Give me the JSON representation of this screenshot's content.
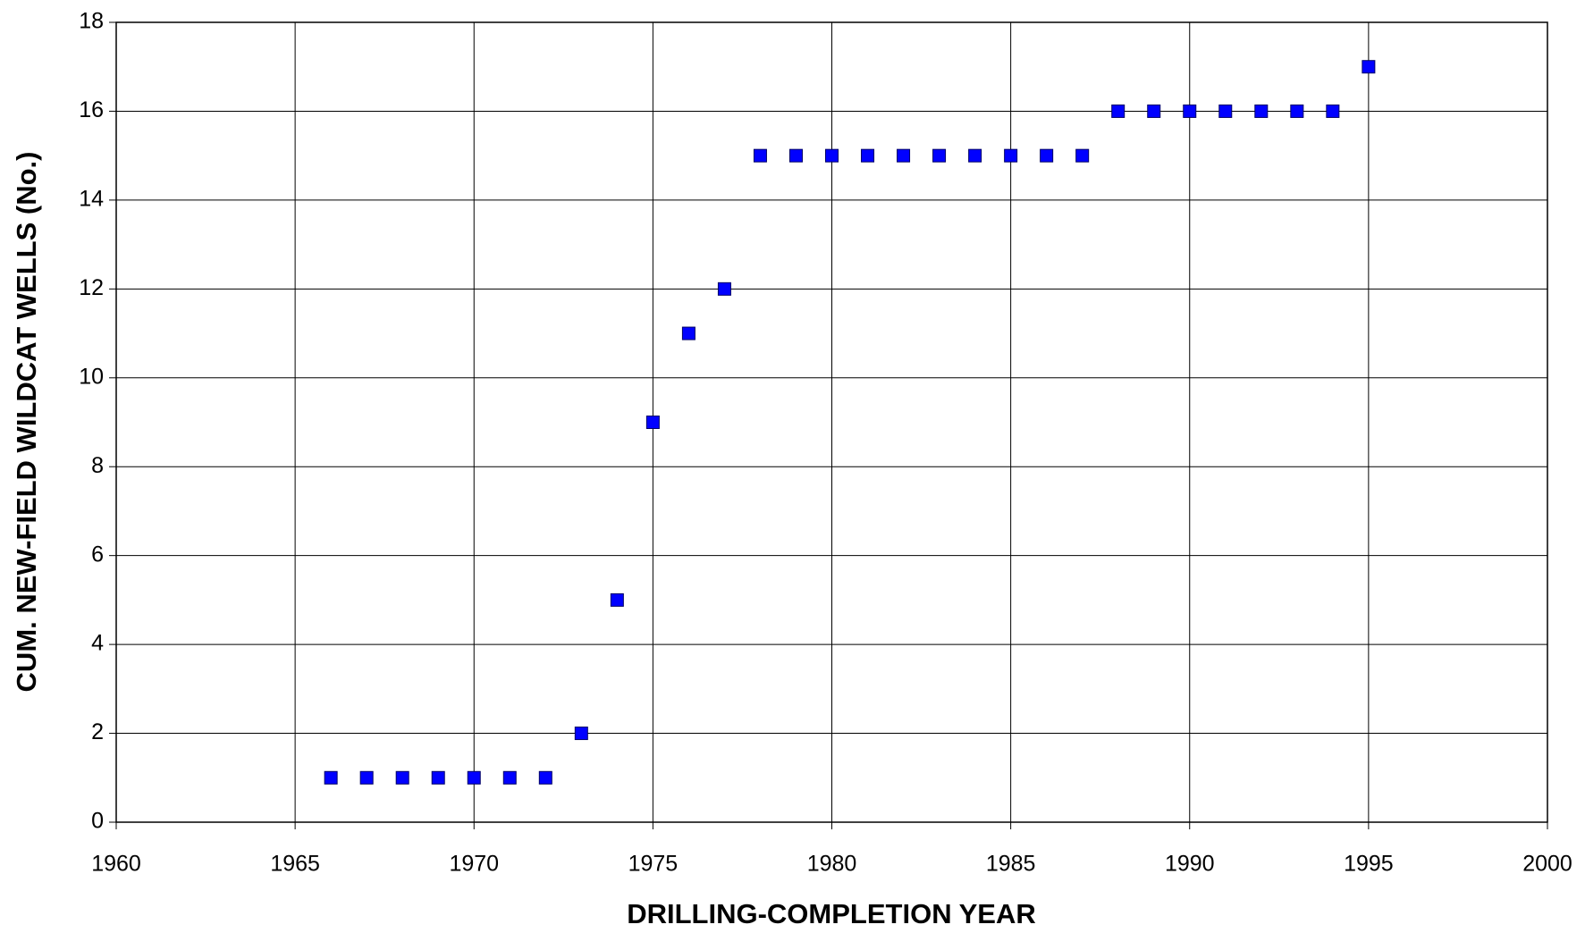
{
  "chart_data": {
    "type": "scatter",
    "x_label": "DRILLING-COMPLETION YEAR",
    "y_label": "CUM. NEW-FIELD WILDCAT WELLS (No.)",
    "series": [
      {
        "color": "#0000ff",
        "x": [
          1966,
          1967,
          1968,
          1969,
          1970,
          1971,
          1972,
          1973,
          1974,
          1975,
          1976,
          1977,
          1978,
          1979,
          1980,
          1981,
          1982,
          1983,
          1984,
          1985,
          1986,
          1987,
          1988,
          1989,
          1990,
          1991,
          1992,
          1993,
          1994,
          1995
        ],
        "values": [
          1,
          1,
          1,
          1,
          1,
          1,
          1,
          2,
          5,
          9,
          11,
          12,
          15,
          15,
          15,
          15,
          15,
          15,
          15,
          15,
          15,
          15,
          16,
          16,
          16,
          16,
          16,
          16,
          16,
          17
        ]
      }
    ],
    "xlim": [
      1960,
      2000
    ],
    "xticks": [
      1960,
      1965,
      1970,
      1975,
      1980,
      1985,
      1990,
      1995,
      2000
    ],
    "ylim": [
      0,
      18
    ],
    "yticks": [
      0,
      2,
      4,
      6,
      8,
      10,
      12,
      14,
      16,
      18
    ],
    "grid": true
  }
}
